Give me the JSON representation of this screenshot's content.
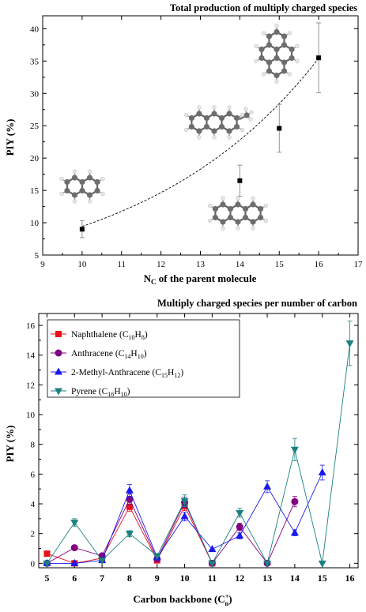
{
  "chart_data": [
    {
      "type": "scatter",
      "title": "Total production of multiply charged species",
      "xlabel": {
        "main": "N",
        "sub": "C",
        "rest": " of the parent molecule"
      },
      "ylabel": "PIY (%)",
      "xlim": [
        9,
        17
      ],
      "ylim": [
        5,
        42
      ],
      "x_ticks": [
        9,
        10,
        11,
        12,
        13,
        14,
        15,
        16,
        17
      ],
      "y_ticks": [
        5,
        10,
        15,
        20,
        25,
        30,
        35,
        40
      ],
      "points": [
        {
          "x": 10,
          "y": 9.0,
          "err": 1.3
        },
        {
          "x": 14,
          "y": 16.5,
          "err": 2.4
        },
        {
          "x": 15,
          "y": 24.6,
          "err": 3.7
        },
        {
          "x": 16,
          "y": 35.5,
          "err": 5.4
        }
      ],
      "fit_curve": {
        "style": "dashed",
        "from_x": 10,
        "to_x": 16,
        "a": 1.04,
        "b": 0.2205
      },
      "molecule_images": [
        {
          "name": "naphthalene-molecule",
          "rings": 2
        },
        {
          "name": "methyl-anthracene-molecule",
          "rings": 3
        },
        {
          "name": "anthracene-molecule",
          "rings": 3
        },
        {
          "name": "pyrene-molecule",
          "rings": 4
        }
      ]
    },
    {
      "type": "line",
      "title": "Multiply charged species per number of carbon",
      "xlabel": "Carbon backbone (C",
      "xlabel_sub": "n",
      "xlabel_sup": "+",
      "xlabel_end": ")",
      "ylabel": "PIY (%)",
      "xlim": [
        4.7,
        16.3
      ],
      "ylim": [
        -0.3,
        16.8
      ],
      "x_ticks": [
        5,
        6,
        7,
        8,
        9,
        10,
        11,
        12,
        13,
        14,
        15,
        16
      ],
      "y_ticks": [
        0,
        2,
        4,
        6,
        8,
        10,
        12,
        14,
        16
      ],
      "legend_position": "top-left",
      "series": [
        {
          "name": "Naphthalene (C10H8)",
          "legend": [
            "Naphthalene (C",
            "10",
            "H",
            "8",
            ")"
          ],
          "color": "#e8121a",
          "marker": "square",
          "x": [
            5,
            6,
            7,
            8,
            9,
            10,
            11
          ],
          "y": [
            0.65,
            0.0,
            0.35,
            3.8,
            0.2,
            3.85,
            0.0
          ],
          "err": [
            0,
            0,
            0,
            0.3,
            0,
            0.3,
            0
          ]
        },
        {
          "name": "Anthracene (C14H10)",
          "legend": [
            "Anthracene (C",
            "14",
            "H",
            "10",
            ")"
          ],
          "color": "#800080",
          "marker": "circle",
          "x": [
            5,
            6,
            7,
            8,
            9,
            10,
            11,
            12,
            13,
            14
          ],
          "y": [
            0.0,
            1.05,
            0.5,
            4.3,
            0.3,
            4.1,
            0.0,
            2.45,
            0.0,
            4.15
          ],
          "err": [
            0,
            0,
            0,
            0.35,
            0,
            0.35,
            0,
            0.25,
            0,
            0.35
          ]
        },
        {
          "name": "2-Methyl-Anthracene (C15H12)",
          "legend": [
            "2-Methyl-Anthracene (C",
            "15",
            "H",
            "12",
            ")"
          ],
          "color": "#1a1aee",
          "marker": "triangle-up",
          "x": [
            5,
            6,
            7,
            8,
            9,
            10,
            11,
            12,
            13,
            14,
            15
          ],
          "y": [
            0.0,
            0.0,
            0.2,
            4.9,
            0.4,
            3.15,
            0.95,
            1.85,
            5.15,
            2.05,
            6.1
          ],
          "err": [
            0,
            0,
            0,
            0.4,
            0,
            0.3,
            0,
            0.2,
            0.4,
            0.2,
            0.5
          ]
        },
        {
          "name": "Pyrene (C16H10)",
          "legend": [
            "Pyrene (C",
            "16",
            "H",
            "10",
            ")"
          ],
          "color": "#1a8080",
          "marker": "triangle-down",
          "x": [
            5,
            6,
            7,
            8,
            9,
            10,
            11,
            12,
            13,
            14,
            15,
            16
          ],
          "y": [
            0.0,
            2.75,
            0.2,
            2.0,
            0.5,
            4.2,
            0.0,
            3.4,
            0.0,
            7.65,
            0.0,
            14.8
          ],
          "err": [
            0,
            0.25,
            0,
            0.2,
            0,
            0.4,
            0,
            0.3,
            0,
            0.75,
            0,
            1.5
          ]
        }
      ]
    }
  ]
}
